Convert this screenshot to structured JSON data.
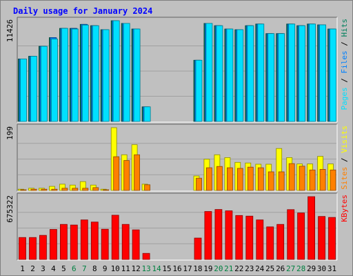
{
  "colors": {
    "frame_bg": "#c0c0c0",
    "plot_bg": "#c0c0c0",
    "gridline": "#a0a0a0",
    "title": "#0000ff",
    "hits": "#00805c",
    "files": "#0080ff",
    "pages": "#00e0ff",
    "visits": "#ffff00",
    "sites": "#ff8000",
    "kbytes": "#ff0000",
    "weekday_label": "#000000",
    "weekend_label": "#008040"
  },
  "chart_data": {
    "type": "bar",
    "title": "Daily usage for January 2024",
    "x": {
      "days": [
        "1",
        "2",
        "3",
        "4",
        "5",
        "6",
        "7",
        "8",
        "9",
        "10",
        "11",
        "12",
        "13",
        "14",
        "15",
        "16",
        "17",
        "18",
        "19",
        "20",
        "21",
        "22",
        "23",
        "24",
        "25",
        "26",
        "27",
        "28",
        "29",
        "30",
        "31"
      ],
      "weekend_days": [
        "6",
        "7",
        "13",
        "14",
        "20",
        "21",
        "27",
        "28"
      ]
    },
    "panels": [
      {
        "id": "top",
        "max_label": "11426",
        "ymax": 11426,
        "legend": [
          "Pages",
          "Files",
          "Hits"
        ],
        "series": [
          {
            "name": "Hits",
            "color_key": "hits",
            "values": [
              7093,
              7395,
              8526,
              9505,
              10559,
              10559,
              11011,
              10861,
              10409,
              11426,
              11124,
              10484,
              1660,
              0,
              0,
              0,
              0,
              6942,
              11124,
              10861,
              10484,
              10409,
              10861,
              11049,
              9959,
              9959,
              11049,
              10862,
              11049,
              10960,
              10484
            ]
          },
          {
            "name": "Files",
            "color_key": "files",
            "values": [
              7093,
              7395,
              8526,
              9505,
              10559,
              10559,
              11011,
              10861,
              10409,
              11426,
              11124,
              10484,
              1660,
              0,
              0,
              0,
              0,
              6942,
              11124,
              10861,
              10484,
              10409,
              10861,
              11049,
              9959,
              9959,
              11049,
              10862,
              11049,
              10960,
              10484
            ]
          },
          {
            "name": "Pages",
            "color_key": "pages",
            "values": [
              7093,
              7395,
              8526,
              9355,
              10559,
              10484,
              10936,
              10861,
              10409,
              11426,
              11124,
              10484,
              1660,
              0,
              0,
              0,
              0,
              6942,
              11124,
              10861,
              10484,
              10409,
              10861,
              11049,
              9959,
              9959,
              11049,
              10862,
              11049,
              10960,
              10484
            ]
          }
        ]
      },
      {
        "id": "middle",
        "max_label": "199",
        "ymax": 199,
        "legend": [
          "Sites",
          "Visits"
        ],
        "series": [
          {
            "name": "Visits",
            "color_key": "visits",
            "values": [
              4,
              7,
              7,
              13,
              20,
              17,
              28,
              17,
              4,
              199,
              113,
              145,
              20,
              0,
              0,
              0,
              0,
              46,
              99,
              113,
              104,
              89,
              87,
              83,
              83,
              133,
              104,
              84,
              84,
              108,
              84
            ]
          },
          {
            "name": "Sites",
            "color_key": "sites",
            "values": [
              2,
              4,
              4,
              4,
              7,
              7,
              7,
              9,
              2,
              107,
              95,
              113,
              18,
              0,
              0,
              0,
              0,
              39,
              72,
              76,
              72,
              70,
              74,
              72,
              59,
              59,
              85,
              77,
              65,
              67,
              65
            ]
          }
        ]
      },
      {
        "id": "bottom",
        "max_label": "675322",
        "ymax": 675322,
        "legend": [
          "KBytes"
        ],
        "series": [
          {
            "name": "KBytes",
            "color_key": "kbytes",
            "values": [
              236000,
              236000,
              259000,
              323000,
              377000,
              370000,
              425000,
              402000,
              325000,
              476000,
              377000,
              318000,
              65000,
              0,
              0,
              0,
              0,
              230000,
              516000,
              537000,
              523000,
              473000,
              466000,
              425000,
              350000,
              377000,
              536000,
              500000,
              675322,
              462000,
              452000
            ]
          }
        ]
      }
    ]
  }
}
